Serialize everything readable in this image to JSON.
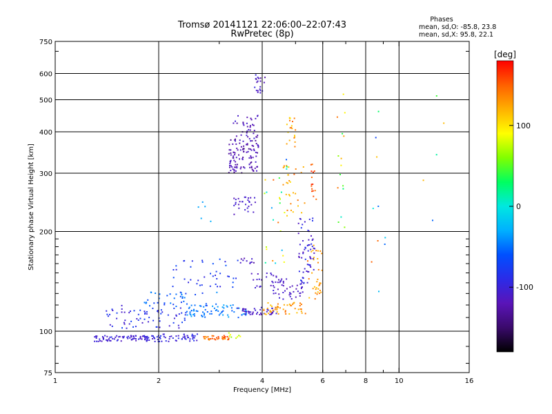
{
  "chart_data": {
    "type": "scatter",
    "title": "Tromsø 20141121 22:06:00–22:07:43",
    "subtitle": "RwPretec (8p)",
    "stats": {
      "heading": "Phases",
      "line_o": "mean, sd,O: -85.8, 23.8",
      "line_x": "mean, sd,X:  95.8, 22.1"
    },
    "xlabel": "Frequency [MHz]",
    "ylabel": "Stationary phase Virtual Height [km]",
    "x_scale": "log",
    "y_scale": "log",
    "xlim": [
      1,
      16
    ],
    "ylim": [
      75,
      750
    ],
    "x_ticks": [
      1,
      2,
      4,
      6,
      8,
      10,
      16
    ],
    "x_tick_labels": [
      "1",
      "2",
      "4",
      "6",
      "8",
      "10",
      "16"
    ],
    "x_grid": [
      2,
      4,
      6,
      8,
      10
    ],
    "y_ticks": [
      75,
      100,
      200,
      300,
      400,
      500,
      600,
      750
    ],
    "y_tick_labels": [
      "75",
      "100",
      "200",
      "300",
      "400",
      "500",
      "600",
      "750"
    ],
    "y_grid": [
      100,
      200,
      300,
      400,
      500,
      600
    ],
    "grid": true,
    "colorbar": {
      "unit": "[deg]",
      "range": [
        -180,
        180
      ],
      "ticks": [
        100,
        0,
        -100
      ],
      "tick_labels": [
        "100",
        "0",
        "-100"
      ],
      "colormap": [
        "#000000",
        "#3a0a6b",
        "#5a14b8",
        "#2b2be8",
        "#0050ff",
        "#00b0ff",
        "#00e8e0",
        "#00ff60",
        "#80ff00",
        "#ffff00",
        "#ffb000",
        "#ff6000",
        "#ff0000"
      ]
    },
    "clusters": [
      {
        "f0": 1.3,
        "f1": 2.0,
        "h0": 93,
        "h1": 97,
        "n": 90,
        "p0": -115,
        "p1": -90
      },
      {
        "f0": 2.0,
        "f1": 2.6,
        "h0": 93,
        "h1": 98,
        "n": 45,
        "p0": -110,
        "p1": -80
      },
      {
        "f0": 2.7,
        "f1": 3.2,
        "h0": 94,
        "h1": 97,
        "n": 35,
        "p0": 125,
        "p1": 165
      },
      {
        "f0": 3.2,
        "f1": 3.5,
        "h0": 95,
        "h1": 99,
        "n": 8,
        "p0": 60,
        "p1": 100
      },
      {
        "f0": 1.4,
        "f1": 2.4,
        "h0": 102,
        "h1": 120,
        "n": 70,
        "p0": -110,
        "p1": -70
      },
      {
        "f0": 2.4,
        "f1": 3.6,
        "h0": 110,
        "h1": 120,
        "n": 70,
        "p0": -60,
        "p1": -30
      },
      {
        "f0": 1.8,
        "f1": 3.0,
        "h0": 118,
        "h1": 132,
        "n": 40,
        "p0": -80,
        "p1": -40
      },
      {
        "f0": 3.4,
        "f1": 4.4,
        "h0": 112,
        "h1": 118,
        "n": 45,
        "p0": -120,
        "p1": -100
      },
      {
        "f0": 4.0,
        "f1": 5.4,
        "h0": 112,
        "h1": 122,
        "n": 50,
        "p0": 110,
        "p1": 145
      },
      {
        "f0": 5.4,
        "f1": 6.0,
        "h0": 120,
        "h1": 185,
        "n": 35,
        "p0": 110,
        "p1": 145
      },
      {
        "f0": 4.3,
        "f1": 5.3,
        "h0": 125,
        "h1": 145,
        "n": 40,
        "p0": -120,
        "p1": -100
      },
      {
        "f0": 5.1,
        "f1": 5.7,
        "h0": 140,
        "h1": 220,
        "n": 60,
        "p0": -120,
        "p1": -80
      },
      {
        "f0": 3.7,
        "f1": 4.6,
        "h0": 135,
        "h1": 150,
        "n": 30,
        "p0": -120,
        "p1": -100
      },
      {
        "f0": 2.0,
        "f1": 3.4,
        "h0": 135,
        "h1": 165,
        "n": 40,
        "p0": -100,
        "p1": -60
      },
      {
        "f0": 3.4,
        "f1": 3.9,
        "h0": 160,
        "h1": 168,
        "n": 10,
        "p0": -130,
        "p1": -100
      },
      {
        "f0": 3.3,
        "f1": 3.9,
        "h0": 225,
        "h1": 255,
        "n": 28,
        "p0": -120,
        "p1": -100
      },
      {
        "f0": 4.6,
        "f1": 5.4,
        "h0": 220,
        "h1": 320,
        "n": 30,
        "p0": 100,
        "p1": 150
      },
      {
        "f0": 5.5,
        "f1": 5.8,
        "h0": 250,
        "h1": 320,
        "n": 15,
        "p0": 140,
        "p1": 170
      },
      {
        "f0": 3.2,
        "f1": 3.9,
        "h0": 300,
        "h1": 380,
        "n": 110,
        "p0": -135,
        "p1": -105
      },
      {
        "f0": 3.3,
        "f1": 3.9,
        "h0": 380,
        "h1": 450,
        "n": 35,
        "p0": -130,
        "p1": -100
      },
      {
        "f0": 3.8,
        "f1": 4.1,
        "h0": 520,
        "h1": 600,
        "n": 20,
        "p0": -130,
        "p1": -90
      },
      {
        "f0": 4.7,
        "f1": 5.0,
        "h0": 360,
        "h1": 450,
        "n": 20,
        "p0": 100,
        "p1": 150
      },
      {
        "f0": 4.0,
        "f1": 4.8,
        "h0": 150,
        "h1": 330,
        "n": 25,
        "p0": -60,
        "p1": 150
      },
      {
        "f0": 6.6,
        "f1": 7.0,
        "h0": 200,
        "h1": 600,
        "n": 15,
        "p0": 0,
        "p1": 150
      },
      {
        "f0": 8.2,
        "f1": 9.6,
        "h0": 100,
        "h1": 640,
        "n": 10,
        "p0": -90,
        "p1": 150
      },
      {
        "f0": 2.5,
        "f1": 2.9,
        "h0": 210,
        "h1": 250,
        "n": 5,
        "p0": -40,
        "p1": -20
      },
      {
        "f0": 10.5,
        "f1": 13.5,
        "h0": 200,
        "h1": 540,
        "n": 5,
        "p0": -100,
        "p1": 130
      }
    ]
  }
}
